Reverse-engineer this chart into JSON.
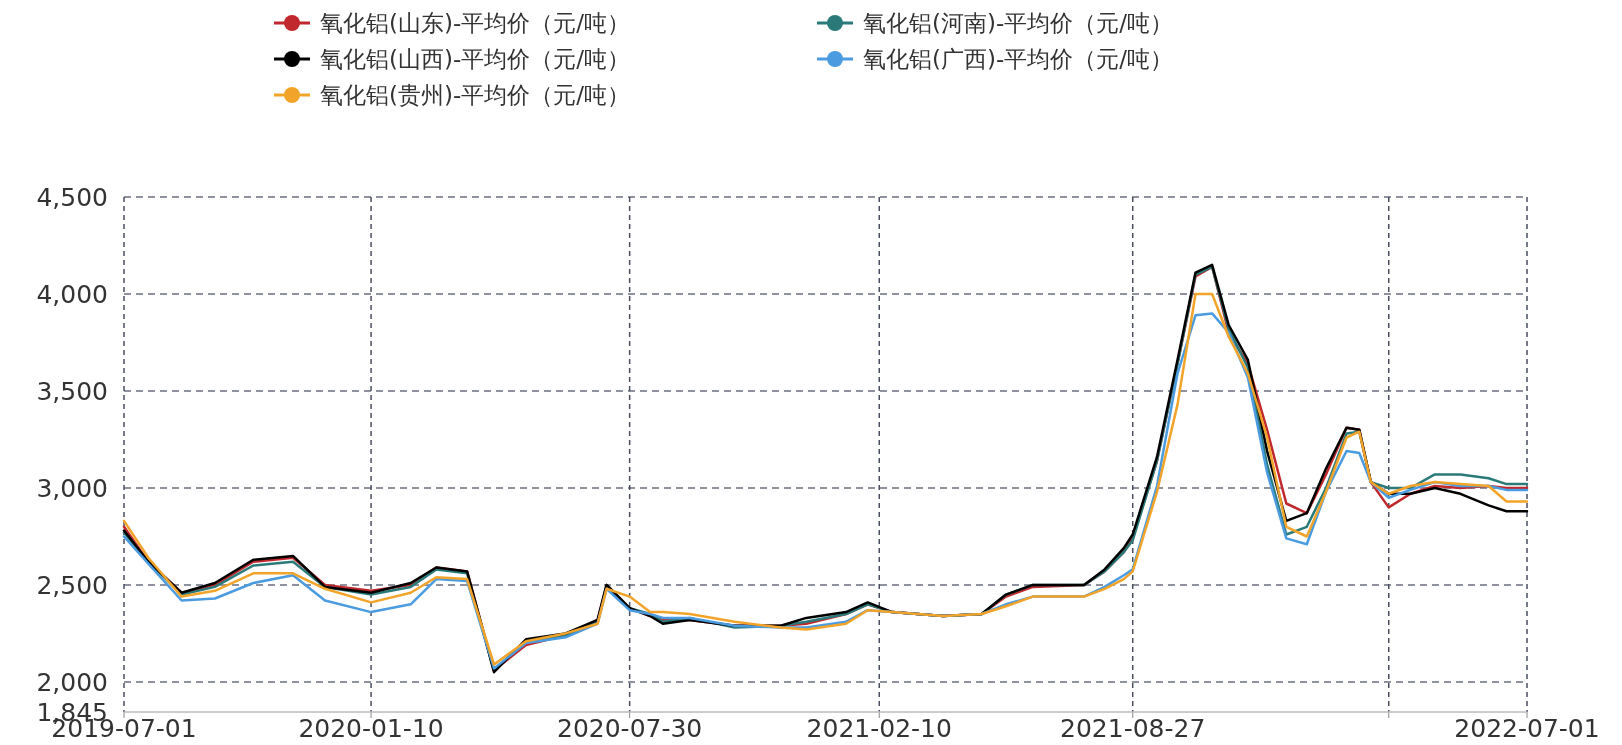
{
  "chart_data": {
    "type": "line",
    "x": [
      "2019-07-01",
      "2019-07-20",
      "2019-08-15",
      "2019-09-10",
      "2019-10-10",
      "2019-11-10",
      "2019-12-05",
      "2020-01-10",
      "2020-02-10",
      "2020-03-01",
      "2020-03-25",
      "2020-04-15",
      "2020-05-10",
      "2020-06-10",
      "2020-07-05",
      "2020-07-12",
      "2020-07-30",
      "2020-08-15",
      "2020-08-25",
      "2020-09-15",
      "2020-10-20",
      "2020-11-25",
      "2020-12-15",
      "2021-01-15",
      "2021-02-01",
      "2021-02-20",
      "2021-04-01",
      "2021-05-01",
      "2021-05-20",
      "2021-06-10",
      "2021-07-20",
      "2021-08-05",
      "2021-08-20",
      "2021-08-27",
      "2021-09-15",
      "2021-10-01",
      "2021-10-15",
      "2021-10-28",
      "2021-11-10",
      "2021-11-25",
      "2021-12-10",
      "2021-12-25",
      "2022-01-10",
      "2022-01-25",
      "2022-02-10",
      "2022-02-20",
      "2022-03-01",
      "2022-03-15",
      "2022-04-01",
      "2022-04-20",
      "2022-05-10",
      "2022-06-01",
      "2022-06-15",
      "2022-07-01"
    ],
    "series": [
      {
        "name": "氧化铝(山东)-平均价（元/吨）",
        "color": "#c0282d",
        "values": [
          2800,
          2620,
          2460,
          2500,
          2620,
          2640,
          2500,
          2470,
          2500,
          2590,
          2570,
          2060,
          2190,
          2240,
          2320,
          2500,
          2380,
          2340,
          2320,
          2320,
          2290,
          2290,
          2300,
          2350,
          2400,
          2360,
          2340,
          2350,
          2440,
          2490,
          2500,
          2570,
          2670,
          2740,
          3140,
          3640,
          4090,
          4140,
          3800,
          3640,
          3300,
          2920,
          2870,
          3070,
          3310,
          3300,
          3030,
          2900,
          2970,
          3010,
          3000,
          3010,
          3000,
          3000
        ]
      },
      {
        "name": "氧化铝(河南)-平均价（元/吨）",
        "color": "#2a7a7a",
        "values": [
          2770,
          2620,
          2450,
          2490,
          2600,
          2620,
          2490,
          2450,
          2490,
          2580,
          2560,
          2060,
          2210,
          2240,
          2310,
          2500,
          2380,
          2350,
          2310,
          2330,
          2280,
          2290,
          2310,
          2350,
          2400,
          2360,
          2340,
          2350,
          2450,
          2500,
          2500,
          2570,
          2670,
          2730,
          3140,
          3640,
          4100,
          4140,
          3820,
          3620,
          3120,
          2760,
          2800,
          3000,
          3280,
          3290,
          3030,
          3000,
          3000,
          3070,
          3070,
          3050,
          3020,
          3020
        ]
      },
      {
        "name": "氧化铝(山西)-平均价（元/吨）",
        "color": "#000000",
        "values": [
          2780,
          2620,
          2460,
          2510,
          2630,
          2650,
          2490,
          2460,
          2510,
          2590,
          2570,
          2050,
          2220,
          2250,
          2320,
          2500,
          2380,
          2340,
          2300,
          2320,
          2290,
          2290,
          2330,
          2360,
          2410,
          2360,
          2340,
          2350,
          2450,
          2500,
          2500,
          2580,
          2690,
          2760,
          3160,
          3660,
          4110,
          4150,
          3840,
          3660,
          3190,
          2830,
          2870,
          3100,
          3310,
          3300,
          3030,
          2970,
          2970,
          3000,
          2970,
          2910,
          2880,
          2880
        ]
      },
      {
        "name": "氧化铝(广西)-平均价（元/吨）",
        "color": "#4b9be0",
        "values": [
          2750,
          2610,
          2420,
          2430,
          2510,
          2550,
          2420,
          2360,
          2400,
          2530,
          2520,
          2070,
          2200,
          2230,
          2300,
          2480,
          2370,
          2350,
          2330,
          2330,
          2290,
          2280,
          2280,
          2310,
          2370,
          2360,
          2340,
          2350,
          2400,
          2440,
          2440,
          2490,
          2550,
          2580,
          3010,
          3590,
          3890,
          3900,
          3800,
          3570,
          3080,
          2740,
          2710,
          2980,
          3190,
          3180,
          3030,
          2950,
          2990,
          3030,
          3010,
          3010,
          2990,
          2990
        ]
      },
      {
        "name": "氧化铝(贵州)-平均价（元/吨）",
        "color": "#f2a42a",
        "values": [
          2830,
          2640,
          2440,
          2470,
          2560,
          2560,
          2480,
          2410,
          2460,
          2540,
          2530,
          2090,
          2210,
          2250,
          2300,
          2480,
          2440,
          2360,
          2360,
          2350,
          2310,
          2280,
          2270,
          2300,
          2370,
          2360,
          2340,
          2350,
          2390,
          2440,
          2440,
          2480,
          2530,
          2570,
          2980,
          3430,
          4000,
          4000,
          3780,
          3590,
          3260,
          2800,
          2750,
          2980,
          3260,
          3290,
          3030,
          2970,
          3010,
          3030,
          3020,
          3010,
          2930,
          2930
        ]
      }
    ],
    "xlim": [
      "2019-07-01",
      "2022-07-01"
    ],
    "xticks": [
      {
        "value": "2019-07-01",
        "label": "2019-07-01"
      },
      {
        "value": "2020-01-10",
        "label": "2020-01-10"
      },
      {
        "value": "2020-07-30",
        "label": "2020-07-30"
      },
      {
        "value": "2021-02-10",
        "label": "2021-02-10"
      },
      {
        "value": "2021-08-27",
        "label": "2021-08-27"
      },
      {
        "value": "2022-03-15",
        "label": null
      },
      {
        "value": "2022-07-01",
        "label": "2022-07-01"
      }
    ],
    "ylim": [
      1845,
      4500
    ],
    "yticks": [
      {
        "value": 1845,
        "label": "1,845"
      },
      {
        "value": 2000,
        "label": "2,000"
      },
      {
        "value": 2500,
        "label": "2,500"
      },
      {
        "value": 3000,
        "label": "3,000"
      },
      {
        "value": 3500,
        "label": "3,500"
      },
      {
        "value": 4000,
        "label": "4,000"
      },
      {
        "value": 4500,
        "label": "4,500"
      }
    ],
    "grid": true,
    "legend": "top"
  }
}
